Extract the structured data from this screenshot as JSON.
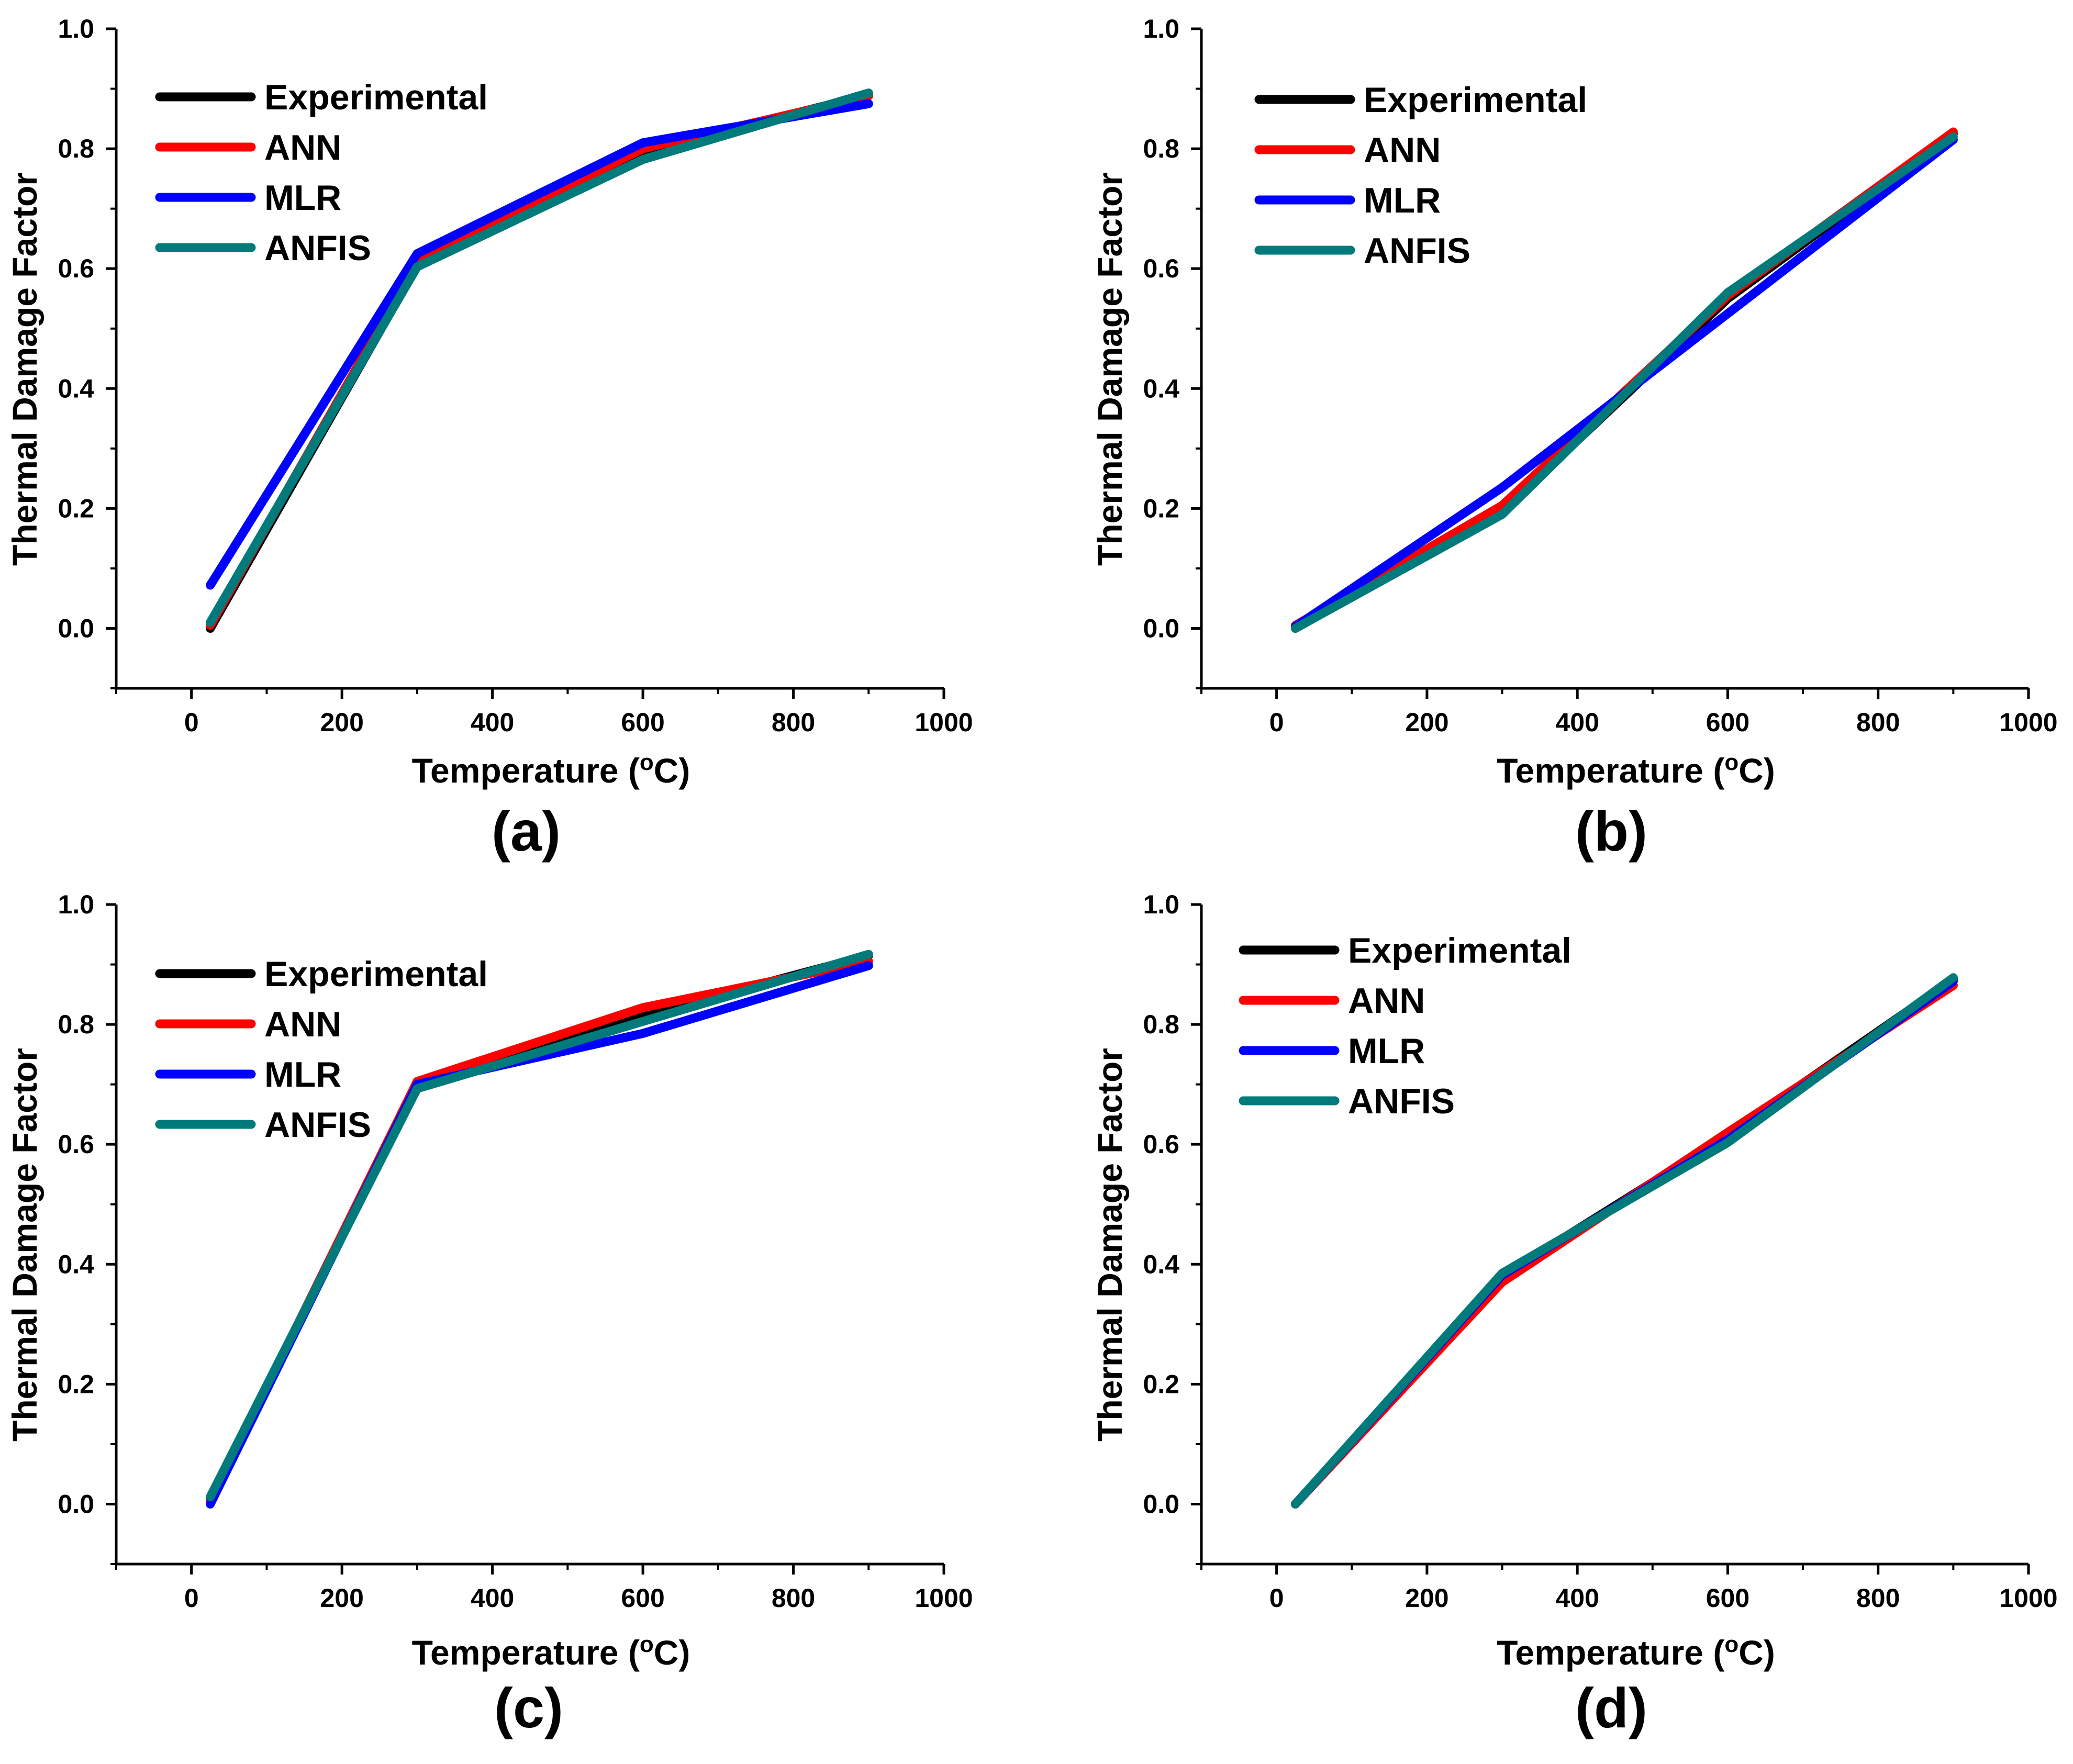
{
  "chart_data": [
    {
      "type": "line",
      "panel_label": "(a)",
      "xlabel": "Temperature (°C)",
      "xlabel_main": "Temperature (",
      "xlabel_unit_sup": "o",
      "xlabel_unit": "C)",
      "ylabel": "Thermal Damage Factor",
      "xlim": [
        -100,
        1000
      ],
      "ylim": [
        -0.1,
        1.0
      ],
      "xticks": [
        "0",
        "200",
        "400",
        "600",
        "800",
        "1000"
      ],
      "yticks": [
        "0.0",
        "0.2",
        "0.4",
        "0.6",
        "0.8",
        "1.0"
      ],
      "x": [
        25,
        300,
        600,
        900
      ],
      "legend_position": "top-left",
      "series": [
        {
          "name": "Experimental",
          "color": "#000000",
          "values": [
            0.0,
            0.605,
            0.795,
            0.89
          ]
        },
        {
          "name": "ANN",
          "color": "#ff0000",
          "values": [
            0.005,
            0.612,
            0.8,
            0.888
          ]
        },
        {
          "name": "MLR",
          "color": "#0000ff",
          "values": [
            0.072,
            0.625,
            0.81,
            0.875
          ]
        },
        {
          "name": "ANFIS",
          "color": "#007a7a",
          "values": [
            0.01,
            0.603,
            0.782,
            0.893
          ]
        }
      ]
    },
    {
      "type": "line",
      "panel_label": "(b)",
      "xlabel": "Temperature (°C)",
      "xlabel_main": "Temperature (",
      "xlabel_unit_sup": "o",
      "xlabel_unit": "C)",
      "ylabel": "Thermal Damage Factor",
      "xlim": [
        -100,
        1000
      ],
      "ylim": [
        -0.1,
        1.0
      ],
      "xticks": [
        "0",
        "200",
        "400",
        "600",
        "800",
        "1000"
      ],
      "yticks": [
        "0.0",
        "0.2",
        "0.4",
        "0.6",
        "0.8",
        "1.0"
      ],
      "x": [
        25,
        300,
        600,
        900
      ],
      "legend_position": "top-left",
      "series": [
        {
          "name": "Experimental",
          "color": "#000000",
          "values": [
            0.0,
            0.195,
            0.55,
            0.825
          ]
        },
        {
          "name": "ANN",
          "color": "#ff0000",
          "values": [
            0.005,
            0.205,
            0.555,
            0.828
          ]
        },
        {
          "name": "MLR",
          "color": "#0000ff",
          "values": [
            0.003,
            0.235,
            0.525,
            0.815
          ]
        },
        {
          "name": "ANFIS",
          "color": "#007a7a",
          "values": [
            0.0,
            0.19,
            0.56,
            0.82
          ]
        }
      ]
    },
    {
      "type": "line",
      "panel_label": "(c)",
      "xlabel": "Temperature (°C)",
      "xlabel_main": "Temperature (",
      "xlabel_unit_sup": "o",
      "xlabel_unit": "C)",
      "ylabel": "Thermal Damage Factor",
      "xlim": [
        -100,
        1000
      ],
      "ylim": [
        -0.1,
        1.0
      ],
      "xticks": [
        "0",
        "200",
        "400",
        "600",
        "800",
        "1000"
      ],
      "yticks": [
        "0.0",
        "0.2",
        "0.4",
        "0.6",
        "0.8",
        "1.0"
      ],
      "x": [
        25,
        300,
        600,
        900
      ],
      "legend_position": "top-left",
      "series": [
        {
          "name": "Experimental",
          "color": "#000000",
          "values": [
            0.005,
            0.7,
            0.815,
            0.915
          ]
        },
        {
          "name": "ANN",
          "color": "#ff0000",
          "values": [
            0.003,
            0.705,
            0.828,
            0.905
          ]
        },
        {
          "name": "MLR",
          "color": "#0000ff",
          "values": [
            0.0,
            0.7,
            0.785,
            0.898
          ]
        },
        {
          "name": "ANFIS",
          "color": "#007a7a",
          "values": [
            0.012,
            0.693,
            0.805,
            0.917
          ]
        }
      ]
    },
    {
      "type": "line",
      "panel_label": "(d)",
      "xlabel": "Temperature (°C)",
      "xlabel_main": "Temperature (",
      "xlabel_unit_sup": "o",
      "xlabel_unit": "C)",
      "ylabel": "Thermal Damage Factor",
      "xlim": [
        -100,
        1000
      ],
      "ylim": [
        -0.1,
        1.0
      ],
      "xticks": [
        "0",
        "200",
        "400",
        "600",
        "800",
        "1000"
      ],
      "yticks": [
        "0.0",
        "0.2",
        "0.4",
        "0.6",
        "0.8",
        "1.0"
      ],
      "x": [
        25,
        300,
        600,
        900
      ],
      "legend_position": "top-left",
      "series": [
        {
          "name": "Experimental",
          "color": "#000000",
          "values": [
            0.0,
            0.38,
            0.615,
            0.875
          ]
        },
        {
          "name": "ANN",
          "color": "#ff0000",
          "values": [
            0.0,
            0.37,
            0.62,
            0.865
          ]
        },
        {
          "name": "MLR",
          "color": "#0000ff",
          "values": [
            0.0,
            0.382,
            0.608,
            0.872
          ]
        },
        {
          "name": "ANFIS",
          "color": "#007a7a",
          "values": [
            0.0,
            0.385,
            0.603,
            0.878
          ]
        }
      ]
    }
  ]
}
